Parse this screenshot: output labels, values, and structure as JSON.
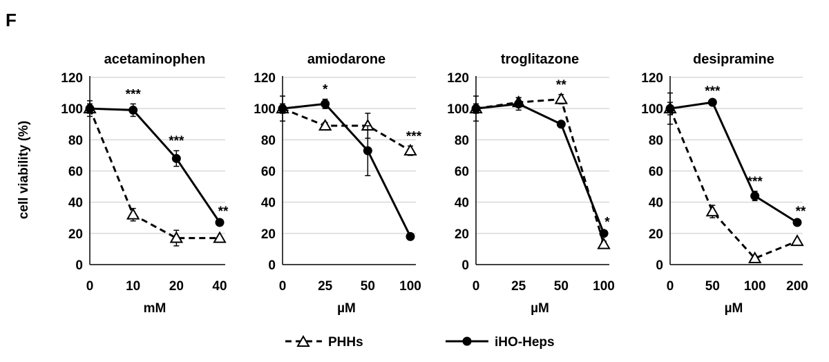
{
  "panel_label": "F",
  "y_axis_label": "cell viability  (%)",
  "legend": {
    "phh_label": "PHHs",
    "iho_label": "iHO-Heps"
  },
  "colors": {
    "axis": "#000000",
    "grid": "#d9d9d9",
    "phh_marker_fill": "#ffffff",
    "iho_marker_fill": "#000000"
  },
  "chart_data": [
    {
      "type": "line",
      "title": "acetaminophen",
      "xlabel": "mM",
      "ylabel": "cell viability  (%)",
      "categories": [
        "0",
        "10",
        "20",
        "40"
      ],
      "ylim": [
        0,
        120
      ],
      "yticks": [
        0,
        20,
        40,
        60,
        80,
        100,
        120
      ],
      "grid": true,
      "series": [
        {
          "name": "PHHs",
          "style": "dashed",
          "marker": "open-triangle",
          "values": [
            100,
            32,
            17,
            17
          ],
          "errors": [
            3,
            4,
            5,
            1
          ]
        },
        {
          "name": "iHO-Heps",
          "style": "solid",
          "marker": "filled-circle",
          "values": [
            100,
            99,
            68,
            27
          ],
          "errors": [
            5,
            4,
            5,
            1
          ]
        }
      ],
      "annotations": [
        {
          "category": "10",
          "text": "***"
        },
        {
          "category": "20",
          "text": "***"
        },
        {
          "category": "40",
          "text": "**"
        }
      ]
    },
    {
      "type": "line",
      "title": "amiodarone",
      "xlabel": "µM",
      "ylabel": "cell viability  (%)",
      "categories": [
        "0",
        "25",
        "50",
        "100"
      ],
      "ylim": [
        0,
        120
      ],
      "yticks": [
        0,
        20,
        40,
        60,
        80,
        100,
        120
      ],
      "grid": true,
      "series": [
        {
          "name": "PHHs",
          "style": "dashed",
          "marker": "open-triangle",
          "values": [
            100,
            89,
            89,
            73
          ],
          "errors": [
            8,
            2,
            8,
            3
          ]
        },
        {
          "name": "iHO-Heps",
          "style": "solid",
          "marker": "filled-circle",
          "values": [
            100,
            103,
            73,
            18
          ],
          "errors": [
            3,
            3,
            16,
            1
          ]
        }
      ],
      "annotations": [
        {
          "category": "25",
          "text": "*"
        },
        {
          "category": "100",
          "text": "***"
        }
      ]
    },
    {
      "type": "line",
      "title": "troglitazone",
      "xlabel": "µM",
      "ylabel": "cell viability  (%)",
      "categories": [
        "0",
        "25",
        "50",
        "100"
      ],
      "ylim": [
        0,
        120
      ],
      "yticks": [
        0,
        20,
        40,
        60,
        80,
        100,
        120
      ],
      "grid": true,
      "series": [
        {
          "name": "PHHs",
          "style": "dashed",
          "marker": "open-triangle",
          "values": [
            100,
            104,
            106,
            13
          ],
          "errors": [
            8,
            3,
            3,
            2
          ]
        },
        {
          "name": "iHO-Heps",
          "style": "solid",
          "marker": "filled-circle",
          "values": [
            100,
            103,
            90,
            20
          ],
          "errors": [
            3,
            4,
            1,
            1
          ]
        }
      ],
      "annotations": [
        {
          "category": "50",
          "text": "**"
        },
        {
          "category": "100",
          "text": "*"
        }
      ]
    },
    {
      "type": "line",
      "title": "desipramine",
      "xlabel": "µM",
      "ylabel": "cell viability  (%)",
      "categories": [
        "0",
        "50",
        "100",
        "200"
      ],
      "ylim": [
        0,
        120
      ],
      "yticks": [
        0,
        20,
        40,
        60,
        80,
        100,
        120
      ],
      "grid": true,
      "series": [
        {
          "name": "PHHs",
          "style": "dashed",
          "marker": "open-triangle",
          "values": [
            100,
            34,
            4,
            15
          ],
          "errors": [
            10,
            4,
            1,
            1
          ]
        },
        {
          "name": "iHO-Heps",
          "style": "solid",
          "marker": "filled-circle",
          "values": [
            100,
            104,
            44,
            27
          ],
          "errors": [
            4,
            1,
            3,
            1
          ]
        }
      ],
      "annotations": [
        {
          "category": "50",
          "text": "***"
        },
        {
          "category": "100",
          "text": "***"
        },
        {
          "category": "200",
          "text": "**"
        }
      ]
    }
  ]
}
